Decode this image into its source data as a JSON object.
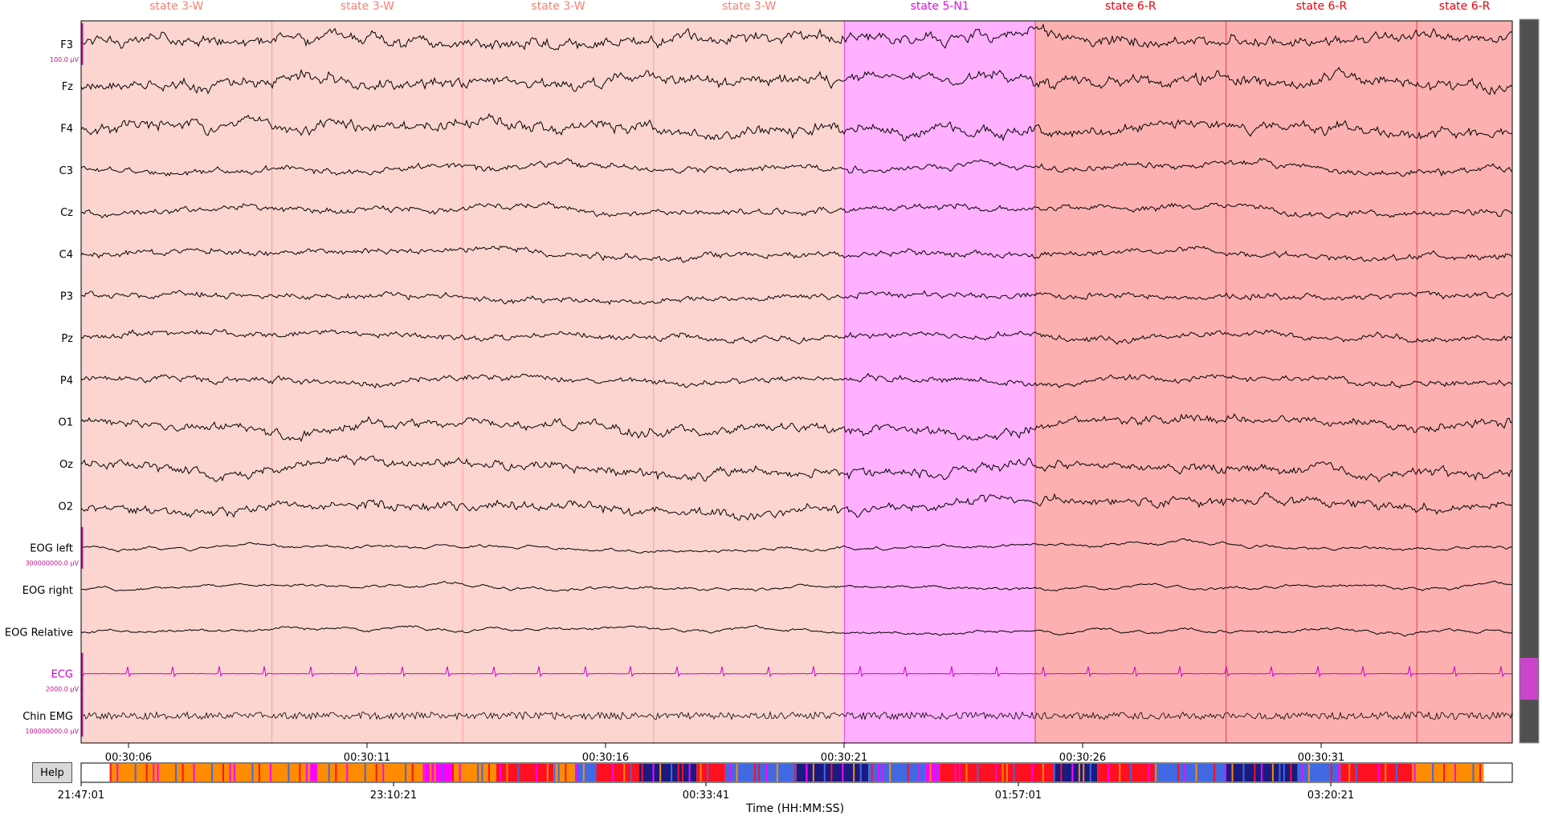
{
  "epochs": [
    {
      "label": "state 3-W",
      "color": "#fa8072",
      "fill": "#fcd5d0"
    },
    {
      "label": "state 3-W",
      "color": "#fa8072",
      "fill": "#fcd5d0"
    },
    {
      "label": "state 3-W",
      "color": "#fa8072",
      "fill": "#fcd5d0"
    },
    {
      "label": "state 3-W",
      "color": "#fa8072",
      "fill": "#fcd5d0"
    },
    {
      "label": "state 5-N1",
      "color": "#e010e0",
      "fill": "#ffb0ff"
    },
    {
      "label": "state 6-R",
      "color": "#e8000a",
      "fill": "#fcb0b0"
    },
    {
      "label": "state 6-R",
      "color": "#e8000a",
      "fill": "#fcb0b0"
    },
    {
      "label": "state 6-R",
      "color": "#e8000a",
      "fill": "#fcb0b0"
    }
  ],
  "channels": [
    {
      "name": "F3",
      "color": "#000000",
      "scale": "100.0 µV"
    },
    {
      "name": "Fz",
      "color": "#000000",
      "scale": ""
    },
    {
      "name": "F4",
      "color": "#000000",
      "scale": ""
    },
    {
      "name": "C3",
      "color": "#000000",
      "scale": ""
    },
    {
      "name": "Cz",
      "color": "#000000",
      "scale": ""
    },
    {
      "name": "C4",
      "color": "#000000",
      "scale": ""
    },
    {
      "name": "P3",
      "color": "#000000",
      "scale": ""
    },
    {
      "name": "Pz",
      "color": "#000000",
      "scale": ""
    },
    {
      "name": "P4",
      "color": "#000000",
      "scale": ""
    },
    {
      "name": "O1",
      "color": "#000000",
      "scale": ""
    },
    {
      "name": "Oz",
      "color": "#000000",
      "scale": ""
    },
    {
      "name": "O2",
      "color": "#000000",
      "scale": ""
    },
    {
      "name": "EOG left",
      "color": "#000000",
      "scale": "300000000.0 µV"
    },
    {
      "name": "EOG right",
      "color": "#000000",
      "scale": ""
    },
    {
      "name": "EOG Relative",
      "color": "#000000",
      "scale": ""
    },
    {
      "name": "ECG",
      "color": "#cc00cc",
      "scale": "2000.0 µV"
    },
    {
      "name": "Chin EMG",
      "color": "#000000",
      "scale": "100000000.0 µV"
    }
  ],
  "time_ticks": [
    "00:30:06",
    "00:30:11",
    "00:30:16",
    "00:30:21",
    "00:30:26",
    "00:30:31"
  ],
  "overview_ticks": [
    "21:47:01",
    "23:10:21",
    "00:33:41",
    "01:57:01",
    "03:20:21"
  ],
  "overview_xlabel": "Time (HH:MM:SS)",
  "help_label": "Help",
  "colors": {
    "scale_bar": "#c0148c",
    "scrollbar_bg": "#505050",
    "scrollbar_thumb": "#cc44cc",
    "hyp_wake": "#ff8c00",
    "hyp_n1": "#ff00ff",
    "hyp_rem": "#ff1020",
    "hyp_n2": "#4169e1",
    "hyp_n3": "#1a1a80"
  }
}
